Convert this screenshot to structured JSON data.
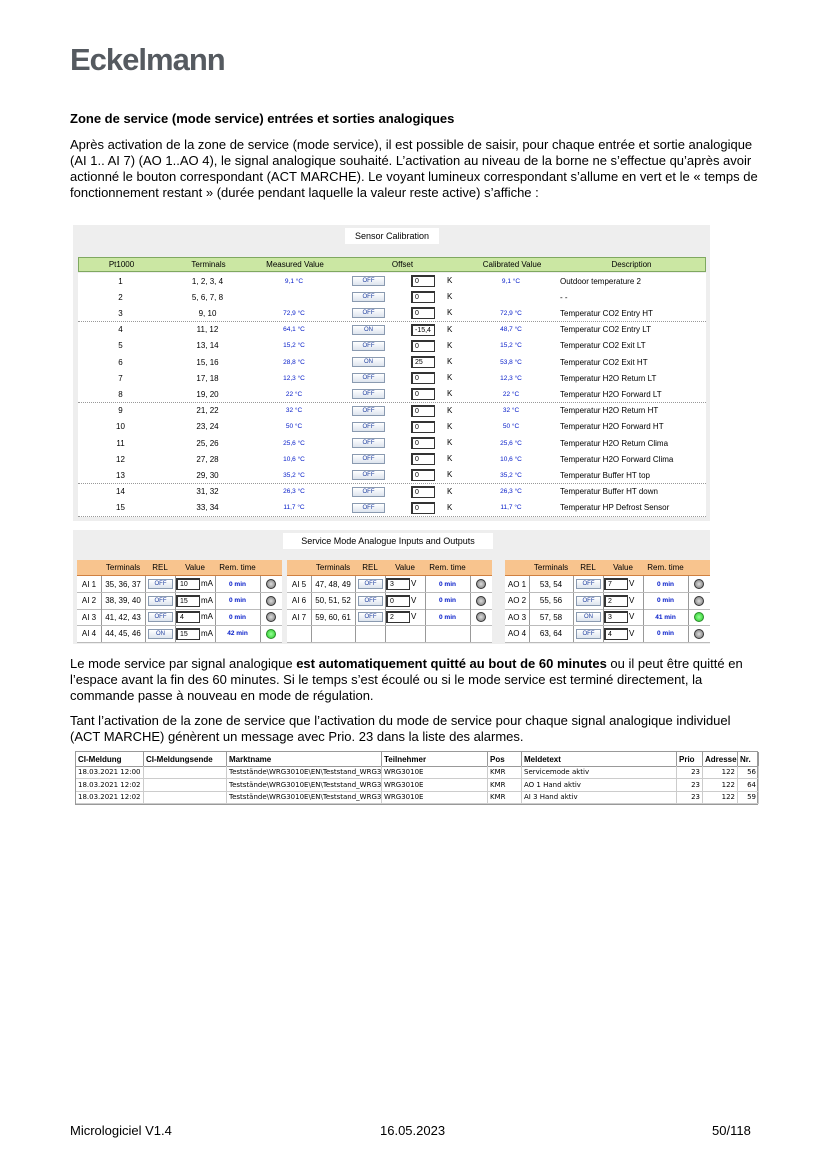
{
  "header": {
    "logo": "Eckelmann"
  },
  "section": {
    "heading": "Zone de service (mode service) entrées et sorties analogiques",
    "intro": "Après activation de la zone de service (mode service), il est possible de saisir, pour chaque entrée et sortie analogique (AI 1.. AI 7) (AO 1..AO 4), le signal analogique souhaité. L’activation au niveau de la borne ne s’effectue qu’après avoir actionné le bouton correspondant (ACT MARCHE). Le voyant lumineux correspondant s’allume en vert et le « temps de fonctionnement restant » (durée pendant laquelle la valeur reste active) s’affiche :"
  },
  "calibration": {
    "title": "Sensor Calibration",
    "unit": "K",
    "columns": [
      "Pt1000",
      "Terminals",
      "Measured Value",
      "Offset",
      "Calibrated Value",
      "Description"
    ],
    "rows": [
      {
        "pt": "1",
        "terminals": "1, 2, 3, 4",
        "measured": "9,1 °C",
        "rel": "OFF",
        "offset": "0",
        "calibrated": "9,1 °C",
        "description": "Outdoor temperature 2"
      },
      {
        "pt": "2",
        "terminals": "5, 6, 7, 8",
        "measured": null,
        "rel": "OFF",
        "offset": "0",
        "calibrated": null,
        "description": "- -"
      },
      {
        "pt": "3",
        "terminals": "9, 10",
        "measured": "72,9 °C",
        "rel": "OFF",
        "offset": "0",
        "calibrated": "72,9 °C",
        "description": "Temperatur CO2 Entry HT"
      },
      {
        "pt": "4",
        "terminals": "11, 12",
        "measured": "64,1 °C",
        "rel": "ON",
        "offset": "-15,4",
        "calibrated": "48,7 °C",
        "description": "Temperatur CO2 Entry LT"
      },
      {
        "pt": "5",
        "terminals": "13, 14",
        "measured": "15,2 °C",
        "rel": "OFF",
        "offset": "0",
        "calibrated": "15,2 °C",
        "description": "Temperatur CO2 Exit LT"
      },
      {
        "pt": "6",
        "terminals": "15, 16",
        "measured": "28,8 °C",
        "rel": "ON",
        "offset": "25",
        "calibrated": "53,8 °C",
        "description": "Temperatur CO2 Exit HT"
      },
      {
        "pt": "7",
        "terminals": "17, 18",
        "measured": "12,3 °C",
        "rel": "OFF",
        "offset": "0",
        "calibrated": "12,3 °C",
        "description": "Temperatur H2O Return LT"
      },
      {
        "pt": "8",
        "terminals": "19, 20",
        "measured": "22 °C",
        "rel": "OFF",
        "offset": "0",
        "calibrated": "22 °C",
        "description": "Temperatur H2O Forward LT"
      },
      {
        "pt": "9",
        "terminals": "21, 22",
        "measured": "32 °C",
        "rel": "OFF",
        "offset": "0",
        "calibrated": "32 °C",
        "description": "Temperatur H2O Return HT"
      },
      {
        "pt": "10",
        "terminals": "23, 24",
        "measured": "50 °C",
        "rel": "OFF",
        "offset": "0",
        "calibrated": "50 °C",
        "description": "Temperatur H2O Forward HT"
      },
      {
        "pt": "11",
        "terminals": "25, 26",
        "measured": "25,6 °C",
        "rel": "OFF",
        "offset": "0",
        "calibrated": "25,6 °C",
        "description": "Temperatur H2O Return Clima"
      },
      {
        "pt": "12",
        "terminals": "27, 28",
        "measured": "10,6 °C",
        "rel": "OFF",
        "offset": "0",
        "calibrated": "10,6 °C",
        "description": "Temperatur H2O Forward Clima"
      },
      {
        "pt": "13",
        "terminals": "29, 30",
        "measured": "35,2 °C",
        "rel": "OFF",
        "offset": "0",
        "calibrated": "35,2 °C",
        "description": "Temperatur Buffer HT top"
      },
      {
        "pt": "14",
        "terminals": "31, 32",
        "measured": "26,3 °C",
        "rel": "OFF",
        "offset": "0",
        "calibrated": "26,3 °C",
        "description": "Temperatur Buffer HT down"
      },
      {
        "pt": "15",
        "terminals": "33, 34",
        "measured": "11,7 °C",
        "rel": "OFF",
        "offset": "0",
        "calibrated": "11,7 °C",
        "description": "Temperatur HP Defrost Sensor"
      }
    ]
  },
  "service": {
    "title": "Service Mode Analogue Inputs and Outputs",
    "columns": [
      "Terminals",
      "REL",
      "Value",
      "Rem. time"
    ],
    "panels": [
      [
        {
          "id": "AI 1",
          "terminals": "35, 36, 37",
          "rel": "OFF",
          "value": "10",
          "unit": "mA",
          "time": "0 min",
          "active": false
        },
        {
          "id": "AI 2",
          "terminals": "38, 39, 40",
          "rel": "OFF",
          "value": "15",
          "unit": "mA",
          "time": "0 min",
          "active": false
        },
        {
          "id": "AI 3",
          "terminals": "41, 42, 43",
          "rel": "OFF",
          "value": "4",
          "unit": "mA",
          "time": "0 min",
          "active": false
        },
        {
          "id": "AI 4",
          "terminals": "44, 45, 46",
          "rel": "ON",
          "value": "15",
          "unit": "mA",
          "time": "42 min",
          "active": true
        }
      ],
      [
        {
          "id": "AI 5",
          "terminals": "47, 48, 49",
          "rel": "OFF",
          "value": "3",
          "unit": "V",
          "time": "0 min",
          "active": false
        },
        {
          "id": "AI 6",
          "terminals": "50, 51, 52",
          "rel": "OFF",
          "value": "0",
          "unit": "V",
          "time": "0 min",
          "active": false
        },
        {
          "id": "AI 7",
          "terminals": "59, 60, 61",
          "rel": "OFF",
          "value": "2",
          "unit": "V",
          "time": "0 min",
          "active": false
        }
      ],
      [
        {
          "id": "AO 1",
          "terminals": "53, 54",
          "rel": "OFF",
          "value": "7",
          "unit": "V",
          "time": "0 min",
          "active": false
        },
        {
          "id": "AO 2",
          "terminals": "55, 56",
          "rel": "OFF",
          "value": "2",
          "unit": "V",
          "time": "0 min",
          "active": false
        },
        {
          "id": "AO 3",
          "terminals": "57, 58",
          "rel": "ON",
          "value": "3",
          "unit": "V",
          "time": "41 min",
          "active": true
        },
        {
          "id": "AO 4",
          "terminals": "63, 64",
          "rel": "OFF",
          "value": "4",
          "unit": "V",
          "time": "0 min",
          "active": false
        }
      ]
    ]
  },
  "para2": {
    "before": "Le mode service par signal analogique ",
    "bold": "est automatiquement quitté au bout de 60 minutes",
    "after": " ou il peut être quitté en l’espace avant la fin des 60 minutes. Si le temps s’est écoulé ou si le mode service est terminé directement, la commande passe à nouveau en mode de régulation."
  },
  "para3": "Tant l’activation de la zone de service que l’activation du mode de service pour chaque signal analogique individuel (ACT MARCHE) génèrent un message avec Prio. 23 dans la liste des alarmes.",
  "alarms": {
    "columns": [
      "CI-Meldung",
      "CI-Meldungsende",
      "Marktname",
      "Teilnehmer",
      "Pos",
      "Meldetext",
      "Prio",
      "Adresse",
      "Nr."
    ],
    "rows": [
      [
        "18.03.2021 12:00",
        null,
        "Teststände\\WRG3010E\\EN\\Teststand_WRG3",
        "WRG3010E",
        "KMR",
        "Servicemode aktiv",
        23,
        122,
        56
      ],
      [
        "18.03.2021 12:02",
        null,
        "Teststände\\WRG3010E\\EN\\Teststand_WRG3",
        "WRG3010E",
        "KMR",
        "AO 1 Hand aktiv",
        23,
        122,
        64
      ],
      [
        "18.03.2021 12:02",
        null,
        "Teststände\\WRG3010E\\EN\\Teststand_WRG3",
        "WRG3010E",
        "KMR",
        "AI 3 Hand aktiv",
        23,
        122,
        59
      ]
    ]
  },
  "footer": {
    "left": "Micrologiciel V1.4",
    "center": "16.05.2023",
    "right": "50/118"
  }
}
